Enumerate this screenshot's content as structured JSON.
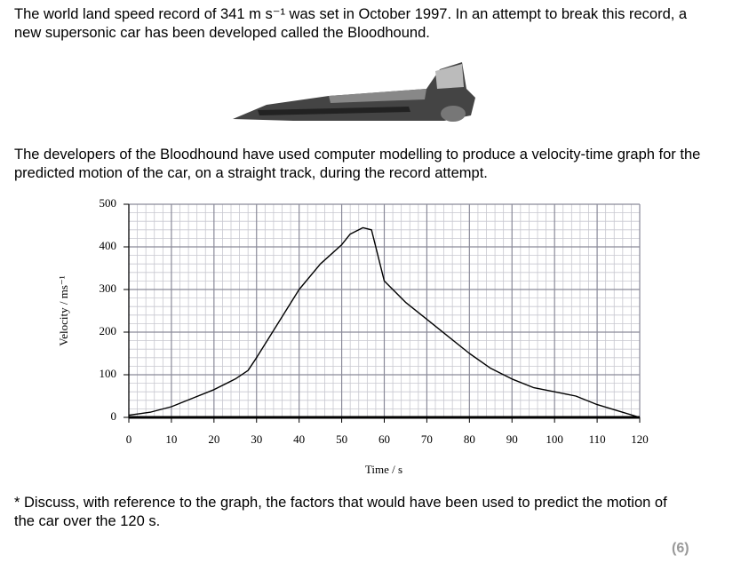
{
  "text": {
    "intro": "The world land speed record of 341 m s⁻¹ was set in October 1997. In an attempt to break this record, a new supersonic car has been developed called the Bloodhound.",
    "context": "The developers of the Bloodhound have used computer modelling to produce a velocity-time graph for the predicted motion of the car, on a straight track, during the record attempt.",
    "question": "* Discuss, with reference to the graph, the factors that would have been used to predict the motion of the car over the 120 s.",
    "marks": "(6)"
  },
  "chart_data": {
    "type": "line",
    "x_label": "Time / s",
    "y_label": "Velocity / ms⁻¹",
    "x": [
      0,
      5,
      10,
      15,
      20,
      25,
      28,
      30,
      35,
      40,
      45,
      50,
      52,
      55,
      57,
      60,
      65,
      70,
      75,
      80,
      85,
      90,
      95,
      100,
      105,
      110,
      115,
      120
    ],
    "values": [
      5,
      12,
      25,
      45,
      65,
      90,
      110,
      140,
      220,
      300,
      360,
      405,
      430,
      445,
      440,
      320,
      270,
      230,
      190,
      150,
      115,
      90,
      70,
      60,
      50,
      30,
      15,
      0
    ],
    "color": "#000000",
    "xlim": [
      0,
      120
    ],
    "ylim": [
      0,
      500
    ],
    "xticks": [
      0,
      10,
      20,
      30,
      40,
      50,
      60,
      70,
      80,
      90,
      100,
      110,
      120
    ],
    "yticks": [
      0,
      100,
      200,
      300,
      400,
      500
    ],
    "grid": true
  }
}
